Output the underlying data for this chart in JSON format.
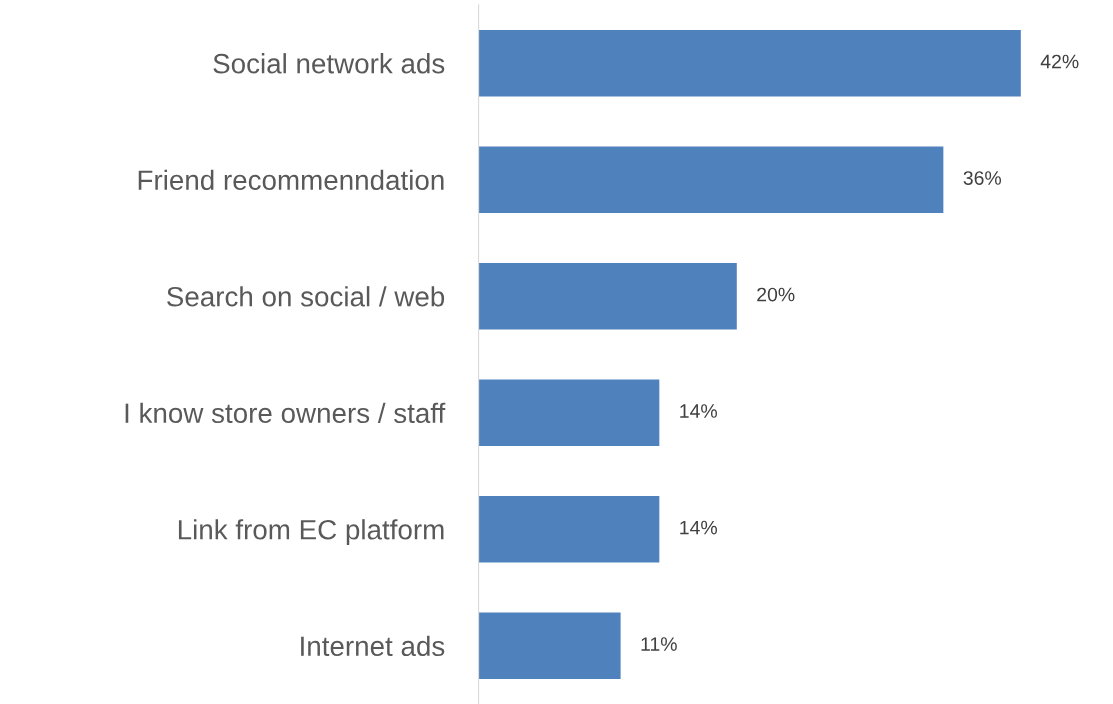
{
  "chart_data": {
    "type": "bar",
    "orientation": "horizontal",
    "categories": [
      "Social network ads",
      "Friend recommenndation",
      "Search on social / web",
      "I know store owners / staff",
      "Link from EC platform",
      "Internet ads"
    ],
    "values": [
      42,
      36,
      20,
      14,
      14,
      11
    ],
    "value_labels": [
      "42%",
      "36%",
      "20%",
      "14%",
      "14%",
      "11%"
    ],
    "color": "#4f81bd",
    "grid": false,
    "legend": false
  }
}
